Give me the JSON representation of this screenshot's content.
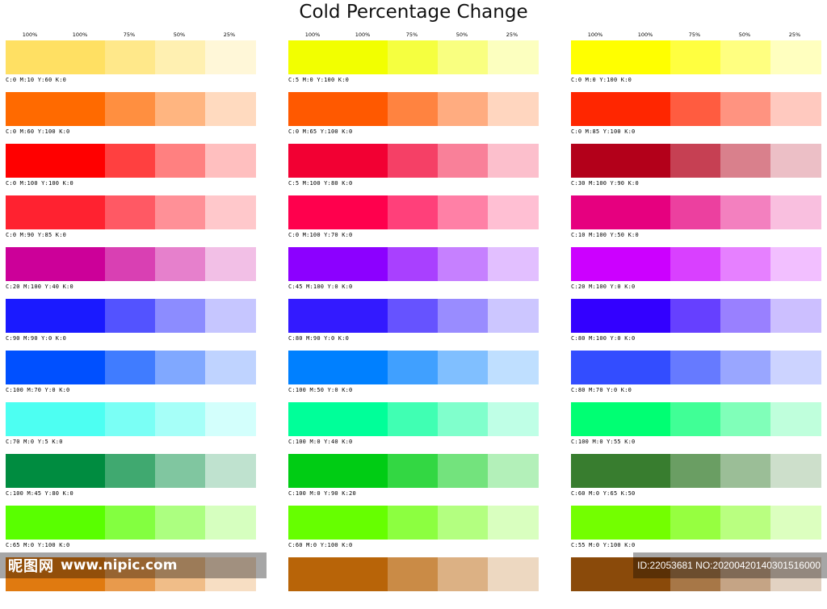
{
  "title": "Cold  Percentage Change",
  "percent_labels": [
    "100%",
    "100%",
    "75%",
    "50%",
    "25%"
  ],
  "columns": [
    {
      "rows": [
        {
          "cmyk": "C:0 M:10 Y:60 K:0",
          "colors": [
            "#ffe063",
            "#ffe88a",
            "#fff0b1",
            "#fff7d8"
          ]
        },
        {
          "cmyk": "C:0 M:60 Y:100 K:0",
          "colors": [
            "#ff6a00",
            "#ff8f40",
            "#ffb580",
            "#ffdabf"
          ]
        },
        {
          "cmyk": "C:0 M:100 Y:100 K:0",
          "colors": [
            "#ff0000",
            "#ff4040",
            "#ff8080",
            "#ffbfbf"
          ]
        },
        {
          "cmyk": "C:0 M:90 Y:85 K:0",
          "colors": [
            "#ff2230",
            "#ff5964",
            "#ff9097",
            "#ffc8cb"
          ]
        },
        {
          "cmyk": "C:20 M:100 Y:40 K:0",
          "colors": [
            "#cc0099",
            "#d940b3",
            "#e680cc",
            "#f2bfe6"
          ]
        },
        {
          "cmyk": "C:90 M:90 Y:0 K:0",
          "colors": [
            "#1a1aff",
            "#5353ff",
            "#8c8cff",
            "#c6c6ff"
          ]
        },
        {
          "cmyk": "C:100 M:70 Y:0 K:0",
          "colors": [
            "#0050ff",
            "#407cff",
            "#80a8ff",
            "#bfd3ff"
          ]
        },
        {
          "cmyk": "C:70 M:0 Y:5 K:0",
          "colors": [
            "#4dfff2",
            "#7afff5",
            "#a6fff8",
            "#d3fffc"
          ]
        },
        {
          "cmyk": "C:100 M:45 Y:80 K:0",
          "colors": [
            "#008c40",
            "#40a970",
            "#80c6a0",
            "#bfe2cf"
          ]
        },
        {
          "cmyk": "C:65 M:0 Y:100 K:0",
          "colors": [
            "#59ff00",
            "#83ff40",
            "#acff80",
            "#d6ffbf"
          ]
        },
        {
          "cmyk": "",
          "colors": [
            "#e07a10",
            "#e89a4c",
            "#f0bd88",
            "#f7dec3"
          ]
        }
      ]
    },
    {
      "rows": [
        {
          "cmyk": "C:5 M:0 Y:100 K:0",
          "colors": [
            "#f2ff00",
            "#f5ff40",
            "#f9ff80",
            "#fcffbf"
          ]
        },
        {
          "cmyk": "C:0 M:65 Y:100 K:0",
          "colors": [
            "#ff5900",
            "#ff8340",
            "#ffac80",
            "#ffd6bf"
          ]
        },
        {
          "cmyk": "C:5 M:100 Y:80 K:0",
          "colors": [
            "#f20033",
            "#f54066",
            "#f98099",
            "#fcbfcc"
          ]
        },
        {
          "cmyk": "C:0 M:100 Y:70 K:0",
          "colors": [
            "#ff004d",
            "#ff407a",
            "#ff80a6",
            "#ffbfd3"
          ]
        },
        {
          "cmyk": "C:45 M:100 Y:0 K:0",
          "colors": [
            "#8c00ff",
            "#a940ff",
            "#c680ff",
            "#e2bfff"
          ]
        },
        {
          "cmyk": "C:80 M:90 Y:0 K:0",
          "colors": [
            "#331aff",
            "#6653ff",
            "#998cff",
            "#ccc6ff"
          ]
        },
        {
          "cmyk": "C:100 M:50 Y:0 K:0",
          "colors": [
            "#0080ff",
            "#40a0ff",
            "#80bfff",
            "#bfdfff"
          ]
        },
        {
          "cmyk": "C:100 M:0 Y:40 K:0",
          "colors": [
            "#00ff99",
            "#40ffb3",
            "#80ffcc",
            "#bfffe6"
          ]
        },
        {
          "cmyk": "C:100 M:0 Y:90 K:20",
          "colors": [
            "#00cc14",
            "#33d743",
            "#73e37d",
            "#b3f0b9"
          ]
        },
        {
          "cmyk": "C:60 M:0 Y:100 K:0",
          "colors": [
            "#66ff00",
            "#8cff40",
            "#b3ff80",
            "#d9ffbf"
          ]
        },
        {
          "cmyk": "",
          "colors": [
            "#b86408",
            "#ca8b46",
            "#dcb184",
            "#edd8c1"
          ]
        }
      ]
    },
    {
      "rows": [
        {
          "cmyk": "C:0 M:0 Y:100 K:0",
          "colors": [
            "#ffff00",
            "#ffff40",
            "#ffff80",
            "#ffffbf"
          ]
        },
        {
          "cmyk": "C:0 M:85 Y:100 K:0",
          "colors": [
            "#ff2600",
            "#ff5c40",
            "#ff9380",
            "#ffc9bf"
          ]
        },
        {
          "cmyk": "C:30 M:100 Y:90 K:0",
          "colors": [
            "#b3001a",
            "#c64053",
            "#d9808c",
            "#ecbfc6"
          ]
        },
        {
          "cmyk": "C:10 M:100 Y:50 K:0",
          "colors": [
            "#e6007f",
            "#ec409f",
            "#f380bf",
            "#f9bfdf"
          ]
        },
        {
          "cmyk": "C:20 M:100 Y:0 K:0",
          "colors": [
            "#cc00ff",
            "#d940ff",
            "#e680ff",
            "#f2bfff"
          ]
        },
        {
          "cmyk": "C:80 M:100 Y:0 K:0",
          "colors": [
            "#3300ff",
            "#6640ff",
            "#9980ff",
            "#ccbfff"
          ]
        },
        {
          "cmyk": "C:80 M:70 Y:0 K:0",
          "colors": [
            "#334dff",
            "#667aff",
            "#99a6ff",
            "#ccd3ff"
          ]
        },
        {
          "cmyk": "C:100 M:0 Y:55 K:0",
          "colors": [
            "#00ff73",
            "#40ff96",
            "#80ffb9",
            "#bfffdc"
          ]
        },
        {
          "cmyk": "C:60 M:0 Y:65 K:50",
          "colors": [
            "#387d2f",
            "#6a9e63",
            "#9bbe97",
            "#cddfcb"
          ]
        },
        {
          "cmyk": "C:55 M:0 Y:100 K:0",
          "colors": [
            "#73ff00",
            "#96ff40",
            "#b9ff80",
            "#dcffbf"
          ]
        },
        {
          "cmyk": "",
          "colors": [
            "#8a4a0a",
            "#a77747",
            "#c5a485",
            "#e2d2c2"
          ]
        }
      ]
    }
  ],
  "watermark": {
    "logo": "昵图网",
    "url": "www.nipic.com",
    "id_text": "ID:22053681 NO:20200420140301516000"
  }
}
